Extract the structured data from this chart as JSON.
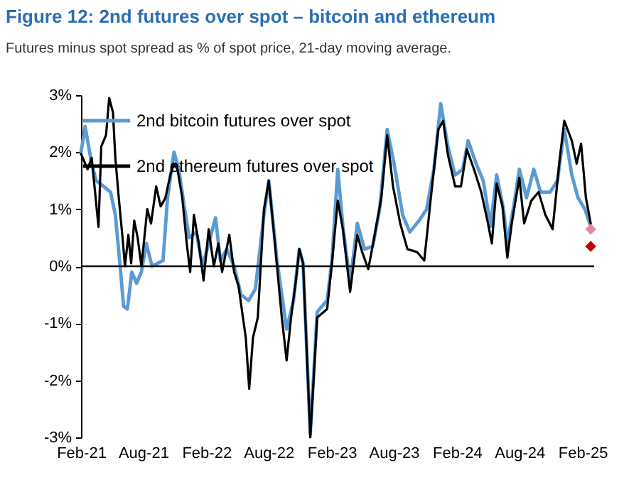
{
  "chart_data": {
    "type": "line",
    "title": "Figure 12: 2nd futures over spot – bitcoin and ethereum",
    "subtitle": "Futures minus spot spread as % of spot price, 21-day moving average.",
    "xlim": [
      "2021-02-01",
      "2025-03-07"
    ],
    "xticks": [
      {
        "value": "2021-02-01",
        "label": "Feb-21"
      },
      {
        "value": "2021-08-01",
        "label": "Aug-21"
      },
      {
        "value": "2022-02-01",
        "label": "Feb-22"
      },
      {
        "value": "2022-08-01",
        "label": "Aug-22"
      },
      {
        "value": "2023-02-01",
        "label": "Feb-23"
      },
      {
        "value": "2023-08-01",
        "label": "Aug-23"
      },
      {
        "value": "2024-02-01",
        "label": "Feb-24"
      },
      {
        "value": "2024-08-01",
        "label": "Aug-24"
      },
      {
        "value": "2025-02-01",
        "label": "Feb-25"
      }
    ],
    "ylim": [
      -3,
      3
    ],
    "yticks": [
      {
        "value": -3,
        "label": "-3%"
      },
      {
        "value": -2,
        "label": "-2%"
      },
      {
        "value": -1,
        "label": "-1%"
      },
      {
        "value": 0,
        "label": "0%"
      },
      {
        "value": 1,
        "label": "1%"
      },
      {
        "value": 2,
        "label": "2%"
      },
      {
        "value": 3,
        "label": "3%"
      }
    ],
    "legend": "top left",
    "ref_lines": [
      {
        "axis": "y",
        "value": 0,
        "color": "#000000"
      }
    ],
    "series": [
      {
        "name": "2nd bitcoin futures over spot",
        "color": "#5b9bd5",
        "x": [
          "2021-02-01",
          "2021-02-13",
          "2021-03-04",
          "2021-03-17",
          "2021-04-08",
          "2021-04-28",
          "2021-05-12",
          "2021-05-26",
          "2021-06-05",
          "2021-06-16",
          "2021-06-29",
          "2021-07-13",
          "2021-07-27",
          "2021-08-10",
          "2021-08-27",
          "2021-09-28",
          "2021-10-11",
          "2021-10-30",
          "2021-11-13",
          "2021-11-30",
          "2021-12-13",
          "2022-01-03",
          "2022-01-21",
          "2022-02-08",
          "2022-02-28",
          "2022-03-14",
          "2022-04-02",
          "2022-04-23",
          "2022-05-13",
          "2022-06-04",
          "2022-06-24",
          "2022-07-19",
          "2022-08-02",
          "2022-08-26",
          "2022-09-23",
          "2022-10-13",
          "2022-10-30",
          "2022-11-10",
          "2022-12-01",
          "2022-12-21",
          "2023-01-19",
          "2023-02-02",
          "2023-02-19",
          "2023-03-06",
          "2023-03-27",
          "2023-04-17",
          "2023-05-08",
          "2023-06-01",
          "2023-06-21",
          "2023-07-13",
          "2023-08-02",
          "2023-08-27",
          "2023-09-17",
          "2023-10-14",
          "2023-11-05",
          "2023-11-26",
          "2023-12-16",
          "2024-01-06",
          "2024-01-27",
          "2024-02-18",
          "2024-03-05",
          "2024-03-28",
          "2024-04-18",
          "2024-05-09",
          "2024-05-27",
          "2024-06-16",
          "2024-06-27",
          "2024-07-17",
          "2024-08-01",
          "2024-08-22",
          "2024-09-12",
          "2024-10-02",
          "2024-10-30",
          "2024-11-20",
          "2024-12-10",
          "2025-01-01",
          "2025-01-19",
          "2025-02-08",
          "2025-02-25"
        ],
        "values": [
          2.0,
          2.45,
          1.8,
          1.5,
          1.4,
          1.3,
          0.9,
          0.0,
          -0.7,
          -0.75,
          -0.1,
          -0.3,
          -0.1,
          0.4,
          0.0,
          0.1,
          1.2,
          2.0,
          1.7,
          1.0,
          0.5,
          0.6,
          0.0,
          0.4,
          0.85,
          0.1,
          0.3,
          0.0,
          -0.5,
          -0.6,
          -0.4,
          0.9,
          1.5,
          0.1,
          -1.1,
          -0.6,
          0.3,
          0.05,
          -2.95,
          -0.8,
          -0.6,
          0.1,
          1.7,
          0.7,
          -0.3,
          0.75,
          0.3,
          0.35,
          1.0,
          2.4,
          1.8,
          0.9,
          0.6,
          0.8,
          1.0,
          1.7,
          2.85,
          2.1,
          1.6,
          1.7,
          2.2,
          1.8,
          1.5,
          0.7,
          1.6,
          1.0,
          0.4,
          1.1,
          1.7,
          1.2,
          1.7,
          1.3,
          1.3,
          1.5,
          2.4,
          1.6,
          1.2,
          1.0,
          0.7
        ]
      },
      {
        "name": "2nd ethereum futures over spot",
        "color": "#000000",
        "x": [
          "2021-02-01",
          "2021-02-20",
          "2021-03-04",
          "2021-03-24",
          "2021-04-01",
          "2021-04-15",
          "2021-04-24",
          "2021-05-05",
          "2021-05-12",
          "2021-05-22",
          "2021-06-02",
          "2021-06-09",
          "2021-06-19",
          "2021-06-27",
          "2021-07-06",
          "2021-07-16",
          "2021-07-27",
          "2021-08-13",
          "2021-08-24",
          "2021-09-08",
          "2021-09-21",
          "2021-10-05",
          "2021-10-19",
          "2021-10-30",
          "2021-11-09",
          "2021-11-23",
          "2021-12-06",
          "2021-12-16",
          "2021-12-27",
          "2022-01-10",
          "2022-01-24",
          "2022-02-08",
          "2022-02-23",
          "2022-03-08",
          "2022-03-19",
          "2022-04-09",
          "2022-04-23",
          "2022-05-06",
          "2022-05-27",
          "2022-06-06",
          "2022-06-17",
          "2022-07-01",
          "2022-07-19",
          "2022-08-02",
          "2022-08-16",
          "2022-08-26",
          "2022-09-09",
          "2022-09-23",
          "2022-10-06",
          "2022-10-20",
          "2022-10-30",
          "2022-11-10",
          "2022-12-01",
          "2022-12-21",
          "2023-01-19",
          "2023-02-02",
          "2023-02-19",
          "2023-03-06",
          "2023-03-27",
          "2023-04-17",
          "2023-05-01",
          "2023-05-19",
          "2023-06-05",
          "2023-06-26",
          "2023-07-13",
          "2023-07-30",
          "2023-08-20",
          "2023-09-10",
          "2023-10-08",
          "2023-10-29",
          "2023-11-19",
          "2023-12-09",
          "2023-12-23",
          "2024-01-06",
          "2024-01-27",
          "2024-02-13",
          "2024-03-01",
          "2024-03-22",
          "2024-04-12",
          "2024-04-30",
          "2024-05-13",
          "2024-05-27",
          "2024-06-13",
          "2024-06-27",
          "2024-07-10",
          "2024-08-01",
          "2024-08-15",
          "2024-09-05",
          "2024-09-26",
          "2024-10-16",
          "2024-11-06",
          "2024-11-27",
          "2024-12-10",
          "2025-01-01",
          "2025-01-15",
          "2025-01-28",
          "2025-02-11",
          "2025-02-25"
        ],
        "values": [
          1.97,
          1.7,
          1.9,
          0.69,
          2.1,
          2.3,
          2.95,
          2.7,
          1.9,
          1.2,
          0.5,
          0.0,
          0.55,
          0.05,
          0.8,
          0.5,
          0.0,
          1.0,
          0.75,
          1.4,
          1.05,
          1.2,
          1.6,
          1.8,
          1.7,
          1.2,
          0.4,
          -0.1,
          0.9,
          0.4,
          -0.25,
          0.65,
          0.0,
          0.4,
          -0.1,
          0.55,
          -0.1,
          -0.35,
          -1.25,
          -2.15,
          -1.25,
          -0.9,
          1.0,
          1.5,
          0.65,
          0.0,
          -0.9,
          -1.65,
          -0.9,
          -0.25,
          0.3,
          0.05,
          -3.0,
          -0.9,
          -0.75,
          0.05,
          1.15,
          0.65,
          -0.45,
          0.55,
          0.25,
          -0.05,
          0.5,
          1.2,
          2.3,
          1.4,
          0.75,
          0.3,
          0.25,
          0.1,
          1.3,
          2.4,
          2.55,
          1.95,
          1.4,
          1.4,
          2.05,
          1.7,
          1.3,
          0.8,
          0.4,
          1.45,
          1.05,
          0.15,
          0.75,
          1.55,
          0.75,
          1.15,
          1.3,
          0.9,
          0.65,
          1.9,
          2.55,
          2.2,
          1.8,
          2.15,
          1.2,
          0.75
        ]
      },
      {
        "type": "scatter",
        "marker": "diamond",
        "color": "#e8889a",
        "x": [
          "2025-02-25"
        ],
        "values": [
          0.65
        ]
      },
      {
        "type": "scatter",
        "marker": "diamond",
        "color": "#c00000",
        "x": [
          "2025-02-25"
        ],
        "values": [
          0.35
        ]
      }
    ]
  }
}
